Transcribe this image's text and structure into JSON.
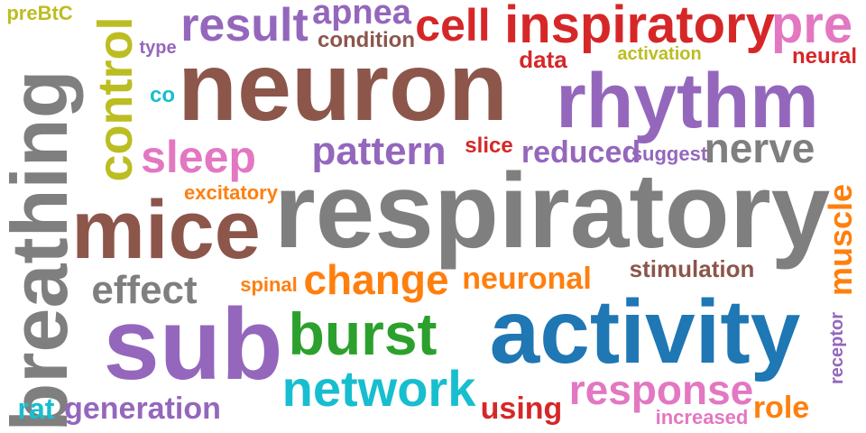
{
  "words": [
    {
      "text": "respiratory",
      "color": "#7f7f7f"
    },
    {
      "text": "neuron",
      "color": "#8c564b"
    },
    {
      "text": "activity",
      "color": "#1f77b4"
    },
    {
      "text": "sub",
      "color": "#9467bd"
    },
    {
      "text": "rhythm",
      "color": "#9467bd"
    },
    {
      "text": "breathing",
      "color": "#7f7f7f"
    },
    {
      "text": "mice",
      "color": "#8c564b"
    },
    {
      "text": "inspiratory",
      "color": "#d62728"
    },
    {
      "text": "burst",
      "color": "#2ca02c"
    },
    {
      "text": "network",
      "color": "#17becf"
    },
    {
      "text": "control",
      "color": "#bcbd22"
    },
    {
      "text": "response",
      "color": "#e377c2"
    },
    {
      "text": "result",
      "color": "#9467bd"
    },
    {
      "text": "cell",
      "color": "#d62728"
    },
    {
      "text": "pre",
      "color": "#e377c2"
    },
    {
      "text": "sleep",
      "color": "#e377c2"
    },
    {
      "text": "pattern",
      "color": "#9467bd"
    },
    {
      "text": "nerve",
      "color": "#7f7f7f"
    },
    {
      "text": "change",
      "color": "#ff7f0e"
    },
    {
      "text": "effect",
      "color": "#7f7f7f"
    },
    {
      "text": "apnea",
      "color": "#9467bd"
    },
    {
      "text": "muscle",
      "color": "#ff7f0e"
    },
    {
      "text": "generation",
      "color": "#9467bd"
    },
    {
      "text": "neuronal",
      "color": "#ff7f0e"
    },
    {
      "text": "reduced",
      "color": "#9467bd"
    },
    {
      "text": "using",
      "color": "#d62728"
    },
    {
      "text": "role",
      "color": "#ff7f0e"
    },
    {
      "text": "stimulation",
      "color": "#8c564b"
    },
    {
      "text": "rat",
      "color": "#17becf"
    },
    {
      "text": "condition",
      "color": "#8c564b"
    },
    {
      "text": "data",
      "color": "#d62728"
    },
    {
      "text": "neural",
      "color": "#d62728"
    },
    {
      "text": "preBtC",
      "color": "#bcbd22"
    },
    {
      "text": "excitatory",
      "color": "#ff7f0e"
    },
    {
      "text": "slice",
      "color": "#d62728"
    },
    {
      "text": "suggest",
      "color": "#9467bd"
    },
    {
      "text": "activation",
      "color": "#bcbd22"
    },
    {
      "text": "spinal",
      "color": "#ff7f0e"
    },
    {
      "text": "increased",
      "color": "#e377c2"
    },
    {
      "text": "receptor",
      "color": "#9467bd"
    },
    {
      "text": "co",
      "color": "#17becf"
    },
    {
      "text": "type",
      "color": "#9467bd"
    }
  ]
}
